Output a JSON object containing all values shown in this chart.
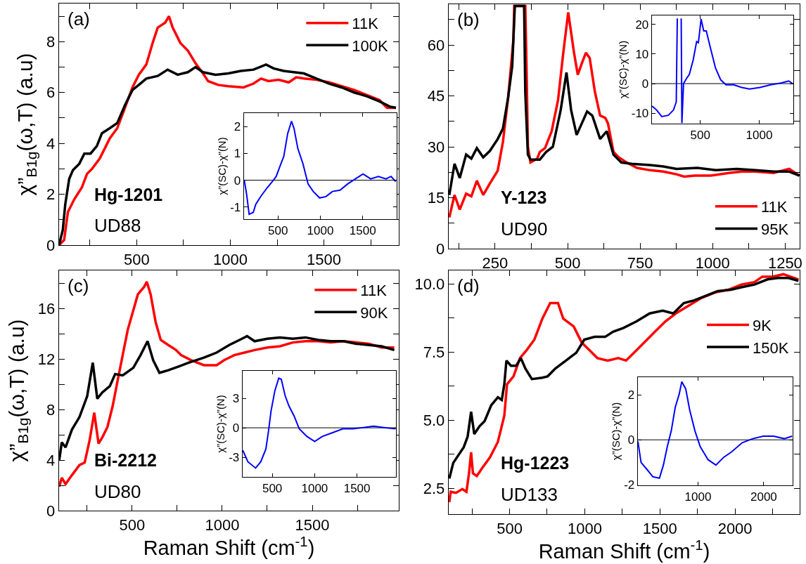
{
  "chart_data": [
    {
      "type": "line",
      "ylabel": "χ”$_{B1g}$(ω,T) (a.u)",
      "annotations": [
        "(a)",
        "Hg-1201",
        "UD88"
      ],
      "legend": "top right",
      "xlim": [
        85,
        1900
      ],
      "ylim": [
        0,
        9.5
      ],
      "xticks": [
        {
          "value": 250,
          "label": null
        },
        500,
        {
          "value": 750,
          "label": null
        },
        1000,
        {
          "value": 1250,
          "label": null
        },
        1500,
        {
          "value": 1750,
          "label": null
        }
      ],
      "yticks": [
        0,
        {
          "value": 1,
          "label": null
        },
        2,
        {
          "value": 3,
          "label": null
        },
        4,
        {
          "value": 5,
          "label": null
        },
        6,
        {
          "value": 7,
          "label": null
        },
        8,
        {
          "value": 9,
          "label": null
        }
      ],
      "series": [
        {
          "name": "11K",
          "color": "#ff0000",
          "x": [
            85,
            112,
            132,
            166,
            207,
            234,
            261,
            302,
            329,
            356,
            396,
            437,
            477,
            511,
            551,
            585,
            612,
            652,
            672,
            692,
            733,
            773,
            814,
            854,
            881,
            935,
            989,
            1070,
            1124,
            1164,
            1204,
            1258,
            1312,
            1352,
            1393,
            1460,
            1528,
            1595,
            1662,
            1730,
            1797,
            1837,
            1885
          ],
          "values": [
            0,
            0.2,
            1.3,
            1.8,
            2.27,
            2.8,
            3.0,
            3.4,
            3.8,
            4.2,
            4.6,
            5.4,
            6.2,
            6.7,
            7.1,
            7.95,
            8.55,
            8.75,
            9.0,
            8.55,
            7.95,
            7.65,
            7.15,
            6.75,
            6.45,
            6.3,
            6.25,
            6.2,
            6.35,
            6.55,
            6.45,
            6.5,
            6.4,
            6.6,
            6.55,
            6.5,
            6.4,
            6.25,
            6.1,
            5.9,
            5.7,
            5.4,
            5.4
          ]
        },
        {
          "name": "100K",
          "color": "#000000",
          "x": [
            85,
            105,
            118,
            139,
            159,
            193,
            220,
            253,
            287,
            314,
            356,
            396,
            437,
            477,
            511,
            551,
            612,
            665,
            719,
            773,
            814,
            854,
            921,
            989,
            1056,
            1124,
            1191,
            1231,
            1285,
            1339,
            1393,
            1460,
            1528,
            1595,
            1662,
            1730,
            1797,
            1851,
            1885
          ],
          "values": [
            0,
            0.6,
            1.6,
            2.6,
            2.95,
            3.2,
            3.6,
            3.6,
            3.9,
            4.4,
            4.6,
            4.8,
            5.5,
            6.1,
            6.3,
            6.55,
            6.65,
            6.9,
            6.7,
            6.8,
            7.0,
            6.8,
            6.7,
            6.75,
            6.85,
            6.9,
            7.1,
            6.95,
            6.85,
            6.8,
            6.75,
            6.55,
            6.35,
            6.2,
            6.0,
            5.85,
            5.65,
            5.45,
            5.4
          ]
        }
      ]
    },
    {
      "type": "line",
      "ylabel": "χ”(SC)-χ”(N)",
      "xlim": [
        100,
        1900
      ],
      "ylim": [
        -1.45,
        2.5
      ],
      "xticks": [
        500,
        1000,
        1500
      ],
      "yticks": [
        -1,
        0,
        1,
        2
      ],
      "ref_lines": [
        {
          "axis": "y",
          "value": 0,
          "color": "#000000"
        }
      ],
      "series": [
        {
          "color": "#0000ff",
          "x": [
            103,
            130,
            160,
            208,
            238,
            298,
            373,
            434,
            479,
            524,
            569,
            614,
            660,
            690,
            735,
            795,
            855,
            916,
            991,
            1066,
            1142,
            1232,
            1322,
            1413,
            1503,
            1593,
            1684,
            1774,
            1834,
            1889
          ],
          "values": [
            0,
            -0.52,
            -1.27,
            -1.2,
            -0.9,
            -0.6,
            -0.28,
            -0.05,
            0.14,
            0.52,
            0.89,
            1.73,
            2.2,
            1.92,
            1.17,
            0.61,
            -0.14,
            -0.42,
            -0.66,
            -0.61,
            -0.42,
            -0.37,
            -0.14,
            0.05,
            0.23,
            0.05,
            0.14,
            0.05,
            0.14,
            -0.05
          ]
        }
      ]
    },
    {
      "type": "line",
      "annotations": [
        "(b)",
        "Y-123",
        "UD90"
      ],
      "legend": "bottom right",
      "xlim": [
        90,
        1300
      ],
      "ylim": [
        0,
        72
      ],
      "xticks": [
        {
          "value": 125,
          "label": null
        },
        250,
        {
          "value": 375,
          "label": null
        },
        500,
        {
          "value": 625,
          "label": null
        },
        750,
        {
          "value": 875,
          "label": null
        },
        1000,
        {
          "value": 1125,
          "label": null
        },
        1250
      ],
      "yticks": [
        0,
        {
          "value": 7.5,
          "label": null
        },
        15,
        {
          "value": 22.5,
          "label": null
        },
        30,
        {
          "value": 37.5,
          "label": null
        },
        45,
        {
          "value": 52.5,
          "label": null
        },
        60,
        {
          "value": 67.5,
          "label": null
        }
      ],
      "series": [
        {
          "name": "11K",
          "color": "#ff0000",
          "x": [
            92,
            110,
            128,
            150,
            168,
            187,
            209,
            232,
            259,
            277,
            295,
            313,
            316,
            354,
            359,
            363,
            372,
            395,
            404,
            422,
            445,
            467,
            485,
            502,
            522,
            535,
            549,
            563,
            576,
            594,
            612,
            630,
            639,
            658,
            676,
            703,
            739,
            784,
            830,
            875,
            902,
            938,
            993,
            1056,
            1101,
            1147,
            1210,
            1264,
            1299
          ],
          "values": [
            9.2,
            15.8,
            11.5,
            16.2,
            15.4,
            20,
            15.8,
            19.2,
            23,
            31.5,
            44.6,
            61.5,
            71.5,
            71.5,
            50,
            30,
            25.4,
            26.5,
            28.5,
            29.6,
            34.6,
            43.8,
            57.7,
            69.6,
            57.7,
            51.2,
            54.6,
            57.7,
            56.2,
            46.2,
            39.2,
            38.5,
            36.9,
            28.5,
            26.9,
            25.4,
            23.8,
            23.1,
            22.7,
            21.9,
            21.2,
            21.5,
            21.5,
            22.3,
            22.7,
            22.7,
            22.3,
            23.5,
            21.5
          ]
        },
        {
          "name": "95K",
          "color": "#000000",
          "x": [
            92,
            110,
            128,
            150,
            168,
            187,
            209,
            232,
            259,
            277,
            295,
            309,
            318,
            350,
            354,
            363,
            372,
            404,
            426,
            449,
            476,
            496,
            512,
            531,
            549,
            567,
            585,
            612,
            635,
            658,
            685,
            721,
            784,
            830,
            875,
            947,
            1011,
            1083,
            1147,
            1210,
            1264,
            1299
          ],
          "values": [
            15.8,
            25,
            20.8,
            27.7,
            26.5,
            29.6,
            26.9,
            28.8,
            32.3,
            35.4,
            44.6,
            53.8,
            71.5,
            71.5,
            46,
            27.7,
            26.2,
            26.2,
            28.5,
            30,
            40.8,
            51.9,
            40.8,
            33.5,
            36.9,
            40.4,
            39.2,
            32.3,
            34.6,
            27.7,
            25.4,
            25,
            24.6,
            24.2,
            23.5,
            23.8,
            23.1,
            23.5,
            23.1,
            22.7,
            22.7,
            21.5
          ]
        }
      ]
    },
    {
      "type": "line",
      "ylabel": "χ”(SC)-χ”(N)",
      "xlim": [
        90,
        1290
      ],
      "ylim": [
        -13.5,
        23
      ],
      "xticks": [
        500,
        1000
      ],
      "yticks": [
        -10,
        0,
        10,
        20
      ],
      "ref_lines": [
        {
          "axis": "y",
          "value": 0,
          "color": "#000000"
        }
      ],
      "series": [
        {
          "color": "#0000ff",
          "x": [
            91,
            129,
            173,
            229,
            273,
            296,
            305,
            307,
            336,
            338,
            344,
            358,
            384,
            407,
            440,
            469,
            484,
            507,
            529,
            551,
            584,
            629,
            673,
            718,
            784,
            851,
            918,
            1007,
            1096,
            1184,
            1251,
            1284
          ],
          "values": [
            -7.6,
            -8.9,
            -11.1,
            -10.7,
            -8.9,
            -6.2,
            22,
            null,
            null,
            22,
            -13.3,
            0,
            1.8,
            3.1,
            8,
            14.2,
            13.8,
            21.8,
            17.8,
            17.8,
            12.4,
            5.3,
            1.3,
            -0.4,
            -0.4,
            -1.3,
            -1.8,
            -1.3,
            -0.4,
            0.2,
            0.9,
            0
          ]
        }
      ]
    },
    {
      "type": "line",
      "ylabel": "χ”$_{B1g}$(ω,T) (a.u)",
      "xlabel": "Raman Shift (cm$^{-1}$)",
      "annotations": [
        "(c)",
        "Bi-2212",
        "UD80"
      ],
      "legend": "top right",
      "xlim": [
        95,
        1980
      ],
      "ylim": [
        0,
        19
      ],
      "xticks": [
        {
          "value": 250,
          "label": null
        },
        500,
        {
          "value": 750,
          "label": null
        },
        1000,
        {
          "value": 1250,
          "label": null
        },
        1500,
        {
          "value": 1750,
          "label": null
        }
      ],
      "yticks": [
        0,
        {
          "value": 2,
          "label": null
        },
        4,
        {
          "value": 6,
          "label": null
        },
        8,
        {
          "value": 10,
          "label": null
        },
        12,
        {
          "value": 14,
          "label": null
        },
        16,
        {
          "value": 18,
          "label": null
        }
      ],
      "series": [
        {
          "name": "11K",
          "color": "#ff0000",
          "x": [
            96,
            110,
            131,
            166,
            208,
            237,
            265,
            290,
            314,
            335,
            363,
            392,
            420,
            448,
            476,
            504,
            532,
            567,
            582,
            603,
            631,
            659,
            701,
            744,
            772,
            828,
            899,
            969,
            1011,
            1067,
            1124,
            1180,
            1251,
            1321,
            1392,
            1462,
            1532,
            1603,
            1673,
            1744,
            1814,
            1885,
            1955
          ],
          "values": [
            1.9,
            2.6,
            2.1,
            2.8,
            3.6,
            3.8,
            5.6,
            7.75,
            5.3,
            5.8,
            6.6,
            8.25,
            10.3,
            12.3,
            14.3,
            15.7,
            17.1,
            17.7,
            18.1,
            17.1,
            14.9,
            13.5,
            13.1,
            12.7,
            12.3,
            11.9,
            11.5,
            11.5,
            11.9,
            12.3,
            12.5,
            12.7,
            12.9,
            13.0,
            13.3,
            13.4,
            13.4,
            13.3,
            13.4,
            13.3,
            13.2,
            12.9,
            12.9
          ]
        },
        {
          "name": "90K",
          "color": "#000000",
          "x": [
            96,
            110,
            131,
            166,
            208,
            251,
            282,
            307,
            335,
            377,
            406,
            448,
            507,
            547,
            586,
            617,
            652,
            701,
            758,
            814,
            899,
            969,
            1039,
            1110,
            1138,
            1180,
            1251,
            1321,
            1392,
            1462,
            1532,
            1603,
            1673,
            1744,
            1814,
            1885,
            1955
          ],
          "values": [
            4.0,
            5.4,
            5.0,
            6.4,
            7.4,
            9.05,
            11.7,
            8.85,
            9.35,
            9.85,
            10.8,
            10.7,
            11.3,
            12.3,
            13.4,
            11.9,
            10.9,
            11.1,
            11.4,
            11.7,
            12.1,
            12.5,
            13.1,
            13.6,
            13.8,
            13.4,
            13.6,
            13.7,
            13.6,
            13.7,
            13.5,
            13.4,
            13.4,
            13.2,
            13.1,
            13.0,
            12.7
          ]
        }
      ]
    },
    {
      "type": "line",
      "ylabel": "χ”(SC)-χ”(N)",
      "xlim": [
        150,
        1960
      ],
      "ylim": [
        -5,
        5.8
      ],
      "xticks": [
        500,
        1000,
        1500
      ],
      "yticks": [
        -3,
        0,
        3
      ],
      "ref_lines": [
        {
          "axis": "y",
          "value": 0,
          "color": "#000000"
        }
      ],
      "series": [
        {
          "color": "#0000ff",
          "x": [
            152,
            212,
            303,
            364,
            424,
            455,
            485,
            530,
            576,
            606,
            652,
            697,
            758,
            818,
            909,
            1000,
            1091,
            1212,
            1333,
            1455,
            1576,
            1697,
            1818,
            1955
          ],
          "values": [
            -2.3,
            -3.46,
            -4.1,
            -3.46,
            -2.17,
            -0.36,
            1.7,
            3.77,
            5.06,
            4.94,
            3.26,
            2.22,
            1.19,
            -0.1,
            -0.88,
            -1.4,
            -0.88,
            -0.49,
            -0.1,
            -0.1,
            0.03,
            0.16,
            0.03,
            -0.1
          ]
        }
      ]
    },
    {
      "type": "line",
      "xlabel": "Raman Shift (cm$^{-1}$)",
      "annotations": [
        "(d)",
        "Hg-1223",
        "UD133"
      ],
      "legend": "right",
      "xlim": [
        95,
        2430
      ],
      "ylim": [
        1.55,
        10.5
      ],
      "xticks": [
        {
          "value": 250,
          "label": null
        },
        500,
        {
          "value": 750,
          "label": null
        },
        1000,
        {
          "value": 1250,
          "label": null
        },
        1500,
        {
          "value": 1750,
          "label": null
        },
        2000,
        {
          "value": 2250,
          "label": null
        }
      ],
      "yticks": [
        2.5,
        {
          "value": 3.75,
          "label": null
        },
        {
          "value": 5,
          "label": "5.0"
        },
        {
          "value": 6.25,
          "label": null
        },
        7.5,
        {
          "value": 8.75,
          "label": null
        },
        {
          "value": 10,
          "label": "10.0"
        }
      ],
      "series": [
        {
          "name": "9K",
          "color": "#ff0000",
          "x": [
            99,
            108,
            143,
            186,
            213,
            230,
            244,
            256,
            282,
            317,
            369,
            422,
            465,
            483,
            526,
            569,
            613,
            665,
            718,
            770,
            822,
            857,
            927,
            979,
            1031,
            1084,
            1153,
            1223,
            1275,
            1345,
            1415,
            1467,
            1537,
            1606,
            1693,
            1780,
            1868,
            1955,
            2042,
            2129,
            2181,
            2251,
            2321,
            2422
          ],
          "values": [
            1.99,
            2.37,
            2.33,
            2.47,
            2.37,
            3.05,
            3.82,
            3.05,
            2.95,
            3.24,
            3.63,
            4.2,
            5.17,
            6.32,
            6.61,
            7.28,
            7.57,
            7.96,
            8.73,
            9.3,
            9.3,
            8.73,
            8.44,
            7.86,
            7.57,
            7.28,
            7.19,
            7.28,
            7.19,
            7.57,
            7.96,
            8.25,
            8.63,
            8.92,
            9.21,
            9.5,
            9.69,
            9.79,
            9.98,
            10.07,
            10.27,
            10.27,
            10.36,
            10.17
          ]
        },
        {
          "name": "150K",
          "color": "#000000",
          "x": [
            99,
            125,
            160,
            195,
            221,
            244,
            265,
            300,
            334,
            378,
            422,
            448,
            465,
            479,
            509,
            544,
            575,
            605,
            648,
            718,
            753,
            805,
            875,
            944,
            997,
            1066,
            1136,
            1188,
            1258,
            1345,
            1432,
            1519,
            1589,
            1659,
            1728,
            1815,
            1885,
            1972,
            2042,
            2129,
            2216,
            2286,
            2355,
            2422
          ],
          "values": [
            2.86,
            3.43,
            3.72,
            4.01,
            4.4,
            5.31,
            4.49,
            4.78,
            4.97,
            5.55,
            5.84,
            5.74,
            6.32,
            7.19,
            7.0,
            7.0,
            7.28,
            6.9,
            6.51,
            6.56,
            6.61,
            6.9,
            7.19,
            7.48,
            7.96,
            8.06,
            8.06,
            8.25,
            8.39,
            8.63,
            8.92,
            9.02,
            8.92,
            9.3,
            9.4,
            9.59,
            9.74,
            9.79,
            9.88,
            9.98,
            10.17,
            10.22,
            10.22,
            10.12
          ]
        }
      ]
    },
    {
      "type": "line",
      "ylabel": "χ”(SC)-χ”(N)",
      "xlim": [
        84,
        2440
      ],
      "ylim": [
        -2.02,
        2.78
      ],
      "xticks": [
        1000,
        2000
      ],
      "yticks": [
        -2,
        0,
        2
      ],
      "ref_lines": [
        {
          "axis": "y",
          "value": 0,
          "color": "#000000"
        }
      ],
      "series": [
        {
          "color": "#0000ff",
          "x": [
            84,
            132,
            232,
            312,
            412,
            472,
            532,
            592,
            652,
            712,
            752,
            812,
            872,
            952,
            1032,
            1152,
            1272,
            1392,
            1512,
            1672,
            1832,
            1992,
            2152,
            2312,
            2432
          ],
          "values": [
            -0.07,
            -1.0,
            -1.35,
            -1.64,
            -1.7,
            -1.12,
            -0.3,
            0.4,
            1.44,
            2.02,
            2.58,
            2.26,
            1.33,
            0.4,
            -0.3,
            -0.88,
            -1.12,
            -0.77,
            -0.53,
            -0.13,
            0.05,
            0.16,
            0.16,
            0.05,
            0.16
          ]
        }
      ]
    }
  ]
}
